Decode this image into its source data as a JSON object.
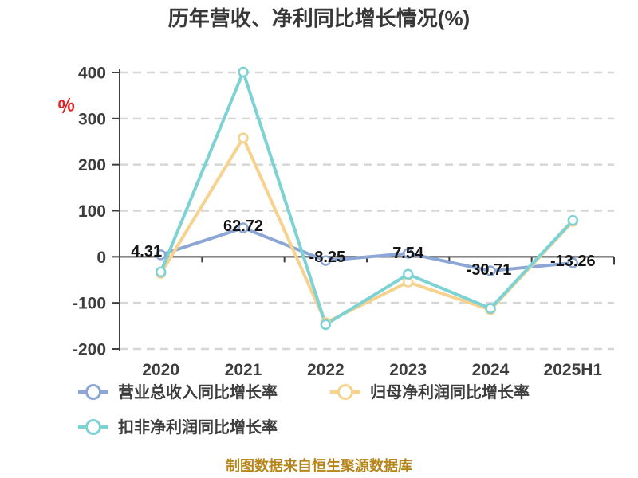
{
  "title": "历年营收、净利同比增长情况(%)",
  "y_axis_unit": "%",
  "source_note": "制图数据来自恒生聚源数据库",
  "colors": {
    "revenue": "#8ca6d5",
    "net_profit": "#f7d28e",
    "non_gaap": "#7dd2d4",
    "axis": "#3f3f3f",
    "grid": "#d6d6d6",
    "title_text": "#383838",
    "data_label_text": "#141414",
    "unit_text": "#e32222",
    "source_text": "#b5861c",
    "background": "#ffffff",
    "marker_fill": "#ffffff"
  },
  "chart_data": {
    "type": "line",
    "title": "历年营收、净利同比增长情况(%)",
    "categories": [
      "2020",
      "2021",
      "2022",
      "2023",
      "2024",
      "2025H1"
    ],
    "series": [
      {
        "name": "营业总收入同比增长率",
        "key": "revenue",
        "color": "#8ca6d5",
        "values": [
          4.31,
          62.72,
          -8.25,
          7.54,
          -30.71,
          -13.26
        ],
        "data_labels": [
          "4.31",
          "62.72",
          "-8.25",
          "7.54",
          "-30.71",
          "-13.26"
        ]
      },
      {
        "name": "归母净利润同比增长率",
        "key": "net_profit",
        "color": "#f7d28e",
        "values": [
          -36,
          258,
          -143,
          -55,
          -115,
          77
        ],
        "data_labels": []
      },
      {
        "name": "扣非净利润同比增长率",
        "key": "non_gaap",
        "color": "#7dd2d4",
        "values": [
          -33,
          401,
          -147,
          -38,
          -112,
          79
        ],
        "data_labels": []
      }
    ],
    "ylim": [
      -200,
      400
    ],
    "yticks": [
      400,
      300,
      200,
      100,
      0,
      -100,
      -200
    ],
    "grid": true,
    "legend_position": "bottom-left"
  }
}
